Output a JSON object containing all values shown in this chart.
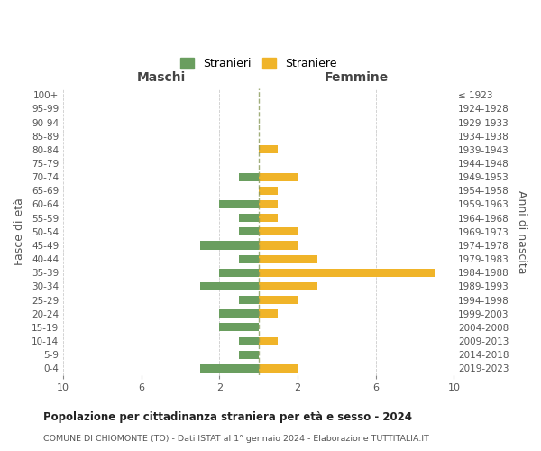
{
  "age_groups": [
    "100+",
    "95-99",
    "90-94",
    "85-89",
    "80-84",
    "75-79",
    "70-74",
    "65-69",
    "60-64",
    "55-59",
    "50-54",
    "45-49",
    "40-44",
    "35-39",
    "30-34",
    "25-29",
    "20-24",
    "15-19",
    "10-14",
    "5-9",
    "0-4"
  ],
  "birth_years": [
    "≤ 1923",
    "1924-1928",
    "1929-1933",
    "1934-1938",
    "1939-1943",
    "1944-1948",
    "1949-1953",
    "1954-1958",
    "1959-1963",
    "1964-1968",
    "1969-1973",
    "1974-1978",
    "1979-1983",
    "1984-1988",
    "1989-1993",
    "1994-1998",
    "1999-2003",
    "2004-2008",
    "2009-2013",
    "2014-2018",
    "2019-2023"
  ],
  "stranieri": [
    0,
    0,
    0,
    0,
    0,
    0,
    1,
    0,
    2,
    1,
    1,
    3,
    1,
    2,
    3,
    1,
    2,
    2,
    1,
    1,
    3
  ],
  "straniere": [
    0,
    0,
    0,
    0,
    1,
    0,
    2,
    1,
    1,
    1,
    2,
    2,
    3,
    9,
    3,
    2,
    1,
    0,
    1,
    0,
    2
  ],
  "stranieri_color": "#6a9e5f",
  "straniere_color": "#f0b429",
  "xlim": 10,
  "title": "Popolazione per cittadinanza straniera per età e sesso - 2024",
  "subtitle": "COMUNE DI CHIOMONTE (TO) - Dati ISTAT al 1° gennaio 2024 - Elaborazione TUTTITALIA.IT",
  "xlabel_left": "Maschi",
  "xlabel_right": "Femmine",
  "ylabel_left": "Fasce di età",
  "ylabel_right": "Anni di nascita",
  "legend_stranieri": "Stranieri",
  "legend_straniere": "Straniere",
  "background_color": "#ffffff",
  "grid_color": "#cccccc",
  "tick_color": "#888888",
  "label_color": "#555555"
}
